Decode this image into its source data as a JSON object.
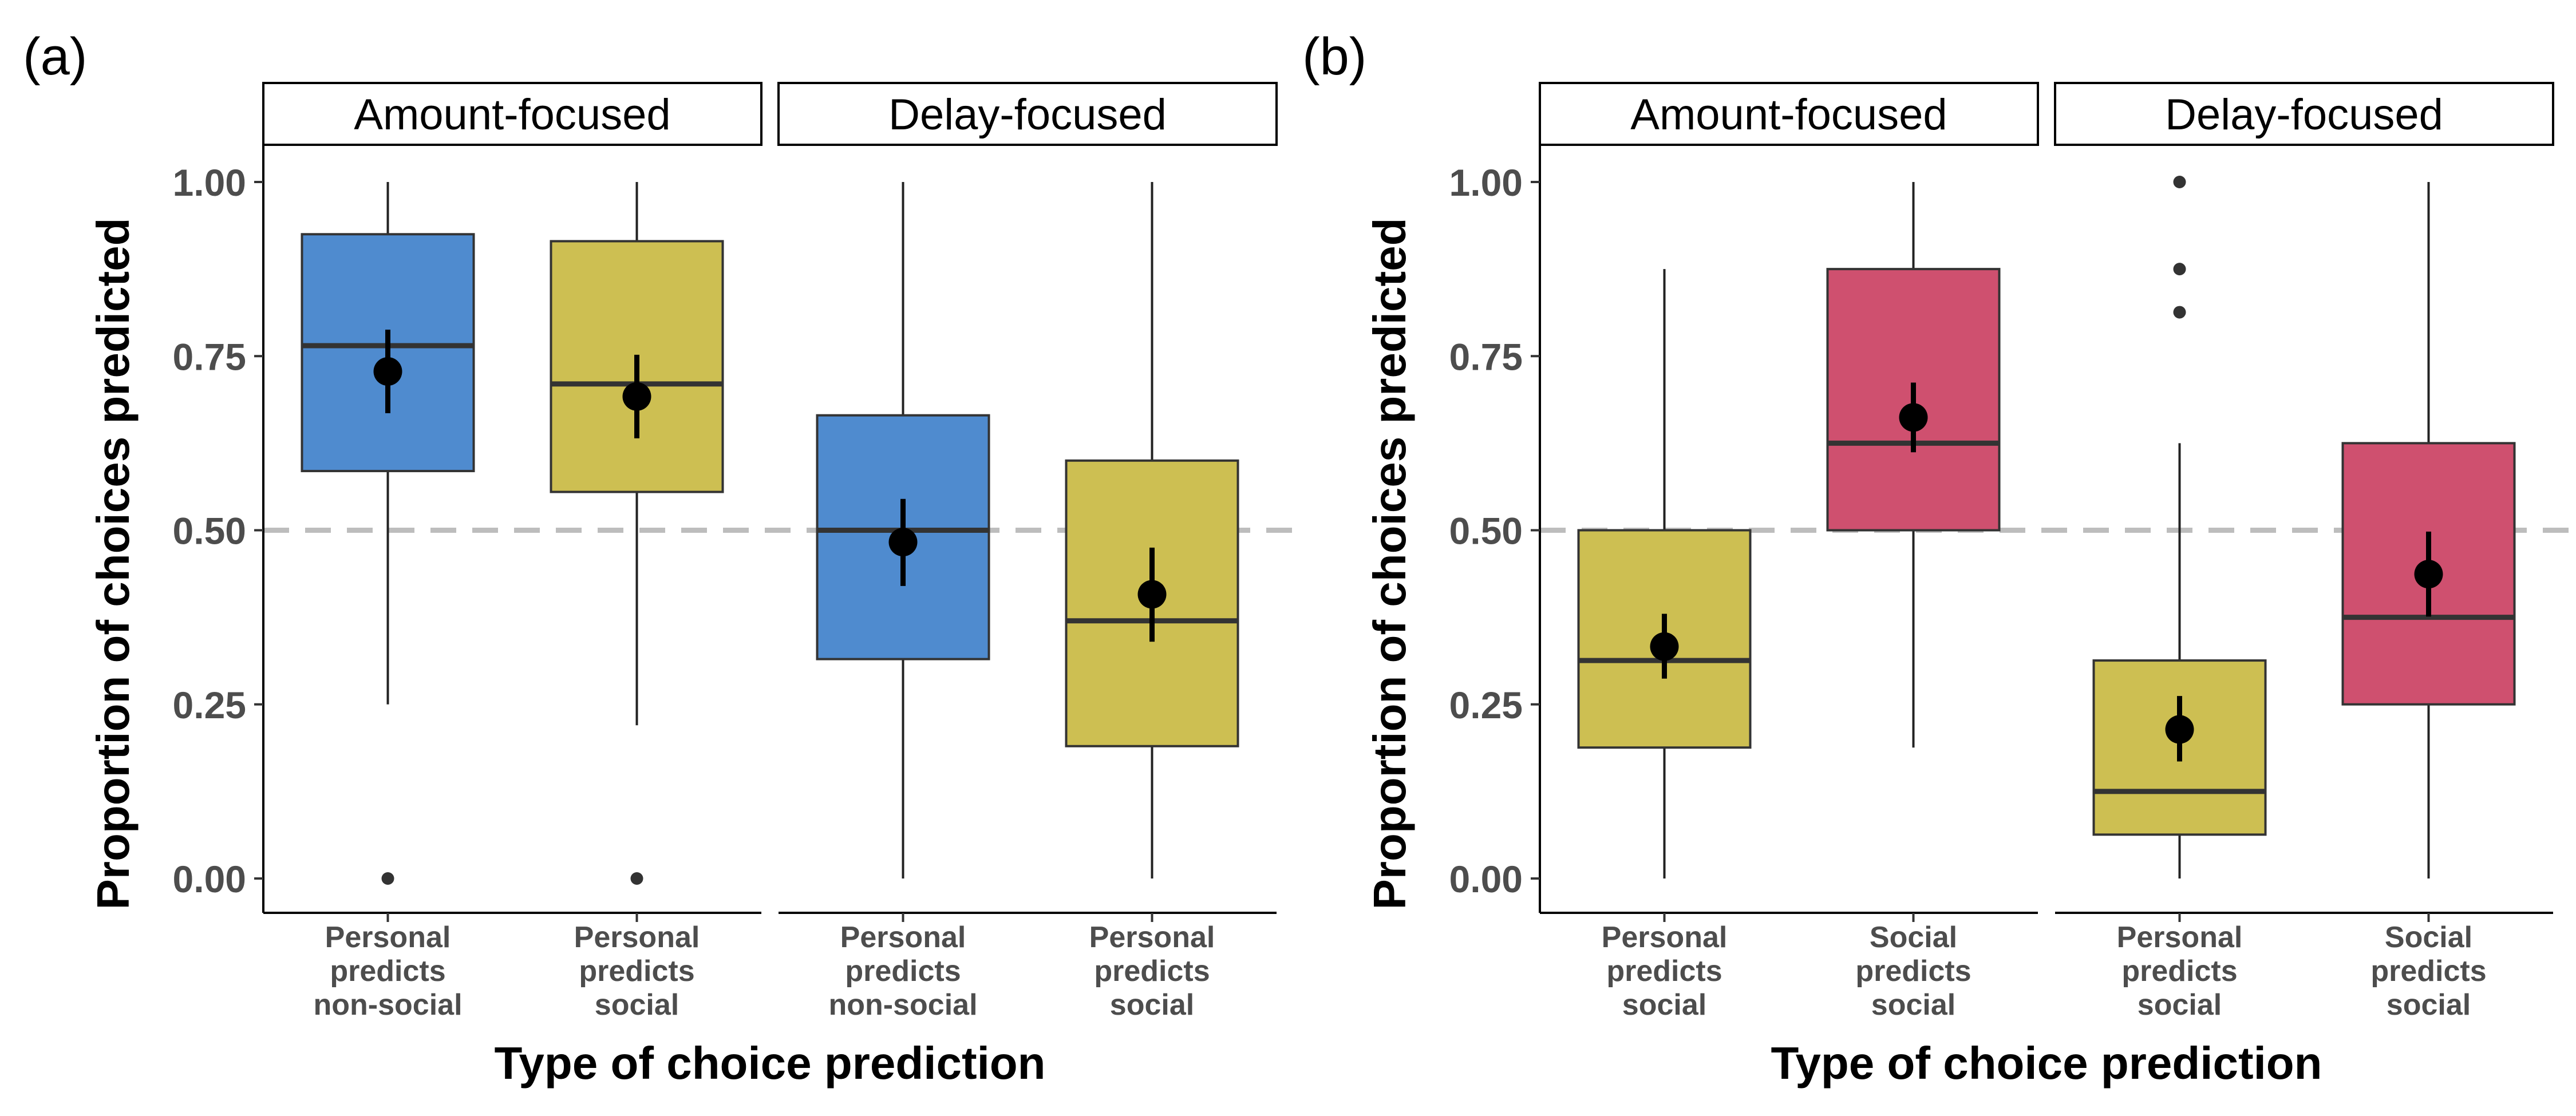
{
  "colors": {
    "blue": "#4f8bcf",
    "yellow": "#cdbf52",
    "red": "#cf506f",
    "reference_line": "#bdbdbd",
    "strip_fill": "#ffffff"
  },
  "chart_data": [
    {
      "type": "box",
      "panel_label": "(a)",
      "ylabel": "Proportion of choices predicted",
      "xlabel": "Type of choice prediction",
      "ylim": [
        0,
        1
      ],
      "yticks": [
        "0.00",
        "0.25",
        "0.50",
        "0.75",
        "1.00"
      ],
      "reference_line": 0.5,
      "facets": [
        {
          "strip": "Amount-focused",
          "groups": [
            {
              "label": [
                "Personal",
                "predicts",
                "non-social"
              ],
              "color": "blue",
              "whisker_low": 0.25,
              "q1": 0.585,
              "median": 0.765,
              "q3": 0.925,
              "whisker_high": 1.0,
              "outliers": [
                0.0
              ],
              "mean": 0.728,
              "ci": [
                0.668,
                0.788
              ]
            },
            {
              "label": [
                "Personal",
                "predicts",
                "social"
              ],
              "color": "yellow",
              "whisker_low": 0.22,
              "q1": 0.555,
              "median": 0.71,
              "q3": 0.915,
              "whisker_high": 1.0,
              "outliers": [
                0.0
              ],
              "mean": 0.692,
              "ci": [
                0.632,
                0.752
              ]
            }
          ]
        },
        {
          "strip": "Delay-focused",
          "groups": [
            {
              "label": [
                "Personal",
                "predicts",
                "non-social"
              ],
              "color": "blue",
              "whisker_low": 0.0,
              "q1": 0.315,
              "median": 0.5,
              "q3": 0.665,
              "whisker_high": 1.0,
              "outliers": [],
              "mean": 0.483,
              "ci": [
                0.42,
                0.545
              ]
            },
            {
              "label": [
                "Personal",
                "predicts",
                "social"
              ],
              "color": "yellow",
              "whisker_low": 0.0,
              "q1": 0.19,
              "median": 0.37,
              "q3": 0.6,
              "whisker_high": 1.0,
              "outliers": [],
              "mean": 0.408,
              "ci": [
                0.34,
                0.475
              ]
            }
          ]
        }
      ]
    },
    {
      "type": "box",
      "panel_label": "(b)",
      "ylabel": "Proportion of choices predicted",
      "xlabel": "Type of choice prediction",
      "ylim": [
        0,
        1
      ],
      "yticks": [
        "0.00",
        "0.25",
        "0.50",
        "0.75",
        "1.00"
      ],
      "reference_line": 0.5,
      "facets": [
        {
          "strip": "Amount-focused",
          "groups": [
            {
              "label": [
                "Personal",
                "predicts",
                "social"
              ],
              "color": "yellow",
              "whisker_low": 0.0,
              "q1": 0.188,
              "median": 0.313,
              "q3": 0.5,
              "whisker_high": 0.875,
              "outliers": [],
              "mean": 0.333,
              "ci": [
                0.287,
                0.38
              ]
            },
            {
              "label": [
                "Social",
                "predicts",
                "social"
              ],
              "color": "red",
              "whisker_low": 0.188,
              "q1": 0.5,
              "median": 0.625,
              "q3": 0.875,
              "whisker_high": 1.0,
              "outliers": [],
              "mean": 0.662,
              "ci": [
                0.612,
                0.712
              ]
            }
          ]
        },
        {
          "strip": "Delay-focused",
          "groups": [
            {
              "label": [
                "Personal",
                "predicts",
                "social"
              ],
              "color": "yellow",
              "whisker_low": 0.0,
              "q1": 0.063,
              "median": 0.125,
              "q3": 0.313,
              "whisker_high": 0.625,
              "outliers": [
                0.813,
                0.875,
                1.0
              ],
              "mean": 0.214,
              "ci": [
                0.168,
                0.262
              ]
            },
            {
              "label": [
                "Social",
                "predicts",
                "social"
              ],
              "color": "red",
              "whisker_low": 0.0,
              "q1": 0.25,
              "median": 0.375,
              "q3": 0.625,
              "whisker_high": 1.0,
              "outliers": [],
              "mean": 0.437,
              "ci": [
                0.376,
                0.498
              ]
            }
          ]
        }
      ]
    }
  ]
}
